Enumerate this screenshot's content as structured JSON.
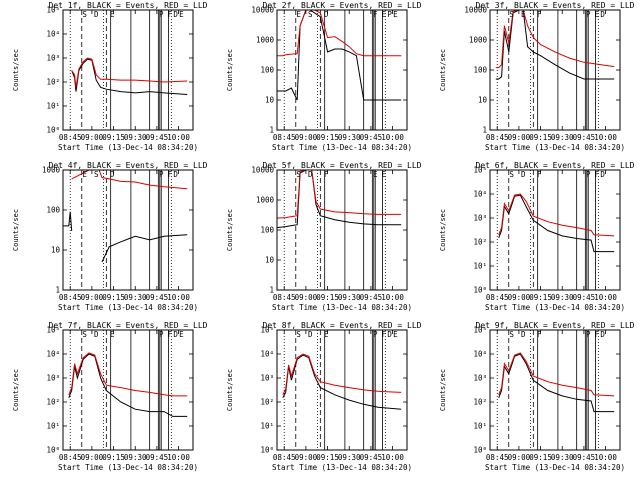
{
  "figure": {
    "xlabel": "Start Time (13-Dec-14 08:34:20)",
    "ylabel": "Counts/sec",
    "colors": {
      "events": "#000000",
      "lld": "#dd0000",
      "background": "#ffffff"
    },
    "time_ticks": [
      "08:45",
      "09:00",
      "09:15",
      "09:30",
      "09:45",
      "10:00"
    ]
  },
  "chart_data": [
    {
      "type": "line",
      "title": "Det 1f, BLACK = Events, RED = LLD",
      "y_scale": "log",
      "ylim": [
        1,
        100000
      ],
      "y_ticks": [
        "10⁰",
        "10¹",
        "10²",
        "10³",
        "10⁴",
        "10⁵"
      ],
      "x": [
        "08:40",
        "08:44",
        "08:46",
        "08:48",
        "08:49",
        "08:51",
        "08:54",
        "08:57",
        "09:00",
        "09:03",
        "09:06",
        "09:10",
        "09:20",
        "09:30",
        "09:40",
        "09:50",
        "10:06"
      ],
      "series": [
        {
          "name": "Events",
          "values": [
            null,
            null,
            300,
            150,
            40,
            300,
            600,
            900,
            800,
            120,
            60,
            50,
            40,
            35,
            40,
            35,
            30
          ]
        },
        {
          "name": "LLD",
          "values": [
            null,
            null,
            300,
            200,
            60,
            350,
            700,
            1000,
            900,
            200,
            130,
            130,
            120,
            120,
            110,
            100,
            110
          ]
        }
      ],
      "panel_markers": [
        "S",
        "D",
        "E",
        "P",
        "F",
        "D",
        "E"
      ]
    },
    {
      "type": "line",
      "title": "Det 2f, BLACK = Events, RED = LLD",
      "y_scale": "log",
      "ylim": [
        1,
        10000
      ],
      "y_ticks": [
        "1",
        "10",
        "100",
        "1000",
        "10000"
      ],
      "x": [
        "08:40",
        "08:44",
        "08:46",
        "08:50",
        "08:54",
        "08:56",
        "09:00",
        "09:03",
        "09:06",
        "09:10",
        "09:15",
        "09:20",
        "09:25",
        "09:30",
        "09:35",
        "09:40",
        "09:50",
        "10:06"
      ],
      "series": [
        {
          "name": "Events",
          "values": [
            20,
            20,
            20,
            25,
            10,
            3000,
            10000,
            10000,
            8000,
            6000,
            400,
            500,
            500,
            400,
            300,
            10,
            10,
            10
          ]
        },
        {
          "name": "LLD",
          "values": [
            300,
            300,
            320,
            340,
            350,
            3000,
            10000,
            10000,
            10000,
            8000,
            1200,
            1300,
            900,
            600,
            350,
            300,
            300,
            300
          ]
        }
      ],
      "panel_markers": [
        "E",
        "S",
        "D",
        "F",
        "E",
        "P",
        "E"
      ]
    },
    {
      "type": "line",
      "title": "Det 3f, BLACK = Events, RED = LLD",
      "y_scale": "log",
      "ylim": [
        1,
        10000
      ],
      "y_ticks": [
        "1",
        "10",
        "100",
        "1000",
        "10000"
      ],
      "x": [
        "08:40",
        "08:44",
        "08:46",
        "08:48",
        "08:50",
        "08:53",
        "08:56",
        "09:00",
        "09:03",
        "09:06",
        "09:10",
        "09:15",
        "09:25",
        "09:35",
        "09:45",
        "10:06"
      ],
      "series": [
        {
          "name": "Events",
          "values": [
            null,
            50,
            50,
            60,
            2000,
            400,
            8000,
            10000,
            10000,
            600,
            400,
            300,
            150,
            80,
            50,
            50
          ]
        },
        {
          "name": "LLD",
          "values": [
            null,
            120,
            120,
            150,
            3000,
            800,
            9000,
            10000,
            10000,
            3000,
            1200,
            700,
            400,
            250,
            180,
            130
          ]
        }
      ],
      "panel_markers": [
        "S",
        "E",
        "F",
        "P",
        "E",
        "D"
      ]
    },
    {
      "type": "line",
      "title": "Det 4f, BLACK = Events, RED = LLD",
      "y_scale": "log",
      "ylim": [
        1,
        1000
      ],
      "y_ticks": [
        "1",
        "10",
        "100",
        "1000"
      ],
      "x": [
        "08:40",
        "08:44",
        "08:45",
        "08:46",
        "08:58",
        "09:05",
        "09:07",
        "09:12",
        "09:20",
        "09:30",
        "09:40",
        "09:50",
        "10:06"
      ],
      "series": [
        {
          "name": "Events",
          "values": [
            40,
            40,
            90,
            30,
            null,
            null,
            5,
            12,
            16,
            22,
            18,
            22,
            24
          ]
        },
        {
          "name": "LLD",
          "values": [
            null,
            null,
            null,
            600,
            1000,
            1000,
            650,
            600,
            520,
            500,
            420,
            380,
            340
          ]
        }
      ],
      "panel_markers": [
        "E",
        "S",
        "D",
        "P",
        "F",
        "D"
      ]
    },
    {
      "type": "line",
      "title": "Det 5f, BLACK = Events, RED = LLD",
      "y_scale": "log",
      "ylim": [
        1,
        10000
      ],
      "y_ticks": [
        "1",
        "10",
        "100",
        "1000",
        "10000"
      ],
      "x": [
        "08:40",
        "08:46",
        "08:50",
        "08:54",
        "08:56",
        "09:00",
        "09:04",
        "09:07",
        "09:10",
        "09:20",
        "09:30",
        "09:40",
        "09:50",
        "10:06"
      ],
      "series": [
        {
          "name": "Events",
          "values": [
            120,
            130,
            140,
            150,
            8000,
            10000,
            10000,
            700,
            300,
            220,
            180,
            160,
            150,
            150
          ]
        },
        {
          "name": "LLD",
          "values": [
            250,
            260,
            280,
            300,
            9000,
            10000,
            10000,
            900,
            500,
            400,
            380,
            350,
            330,
            330
          ]
        }
      ],
      "panel_markers": [
        "S",
        "D",
        "F",
        "E",
        "E"
      ]
    },
    {
      "type": "line",
      "title": "Det 6f, BLACK = Events, RED = LLD",
      "y_scale": "log",
      "ylim": [
        1,
        100000
      ],
      "y_ticks": [
        "10⁰",
        "10¹",
        "10²",
        "10³",
        "10⁴",
        "10⁵"
      ],
      "x": [
        "08:40",
        "08:46",
        "08:48",
        "08:50",
        "08:53",
        "08:57",
        "09:01",
        "09:05",
        "09:10",
        "09:20",
        "09:30",
        "09:40",
        "09:50",
        "09:52",
        "10:06"
      ],
      "series": [
        {
          "name": "Events",
          "values": [
            null,
            150,
            300,
            3000,
            1500,
            8000,
            9000,
            3000,
            800,
            300,
            180,
            140,
            120,
            40,
            40
          ]
        },
        {
          "name": "LLD",
          "values": [
            null,
            200,
            400,
            4000,
            2000,
            9000,
            10000,
            5000,
            1200,
            700,
            500,
            400,
            300,
            200,
            180
          ]
        }
      ],
      "panel_markers": [
        "S",
        "D",
        "F",
        "P",
        "F",
        "D"
      ]
    },
    {
      "type": "line",
      "title": "Det 7f, BLACK = Events, RED = LLD",
      "y_scale": "log",
      "ylim": [
        1,
        100000
      ],
      "y_ticks": [
        "10⁰",
        "10¹",
        "10²",
        "10³",
        "10⁴",
        "10⁵"
      ],
      "x": [
        "08:40",
        "08:44",
        "08:46",
        "08:48",
        "08:50",
        "08:54",
        "08:58",
        "09:02",
        "09:06",
        "09:10",
        "09:20",
        "09:30",
        "09:40",
        "09:50",
        "09:56",
        "10:06"
      ],
      "series": [
        {
          "name": "Events",
          "values": [
            null,
            150,
            300,
            3000,
            1000,
            6000,
            10000,
            8000,
            1000,
            300,
            100,
            50,
            40,
            40,
            25,
            25
          ]
        },
        {
          "name": "LLD",
          "values": [
            null,
            200,
            400,
            4000,
            1500,
            7000,
            11000,
            9000,
            1500,
            500,
            400,
            300,
            250,
            200,
            180,
            180
          ]
        }
      ],
      "panel_markers": [
        "S",
        "D",
        "E",
        "P",
        "F",
        "D",
        "E"
      ]
    },
    {
      "type": "line",
      "title": "Det 8f, BLACK = Events, RED = LLD",
      "y_scale": "log",
      "ylim": [
        1,
        100000
      ],
      "y_ticks": [
        "10⁰",
        "10¹",
        "10²",
        "10³",
        "10⁴",
        "10⁵"
      ],
      "x": [
        "08:40",
        "08:44",
        "08:46",
        "08:48",
        "08:50",
        "08:54",
        "08:58",
        "09:02",
        "09:06",
        "09:10",
        "09:20",
        "09:30",
        "09:40",
        "09:50",
        "10:06"
      ],
      "series": [
        {
          "name": "Events",
          "values": [
            null,
            150,
            250,
            3000,
            800,
            6000,
            9000,
            7000,
            1200,
            400,
            200,
            120,
            80,
            60,
            50
          ]
        },
        {
          "name": "LLD",
          "values": [
            null,
            200,
            350,
            3500,
            1200,
            7000,
            10000,
            8000,
            1500,
            700,
            500,
            400,
            320,
            280,
            250
          ]
        }
      ],
      "panel_markers": [
        "S",
        "D",
        "E",
        "P",
        "F",
        "D",
        "E"
      ]
    },
    {
      "type": "line",
      "title": "Det 9f, BLACK = Events, RED = LLD",
      "y_scale": "log",
      "ylim": [
        1,
        100000
      ],
      "y_ticks": [
        "10⁰",
        "10¹",
        "10²",
        "10³",
        "10⁴",
        "10⁵"
      ],
      "x": [
        "08:40",
        "08:46",
        "08:48",
        "08:50",
        "08:53",
        "08:57",
        "09:01",
        "09:05",
        "09:10",
        "09:20",
        "09:30",
        "09:40",
        "09:50",
        "09:52",
        "10:06"
      ],
      "series": [
        {
          "name": "Events",
          "values": [
            null,
            150,
            300,
            3000,
            1500,
            8000,
            10000,
            4000,
            800,
            300,
            180,
            130,
            110,
            40,
            40
          ]
        },
        {
          "name": "LLD",
          "values": [
            null,
            200,
            400,
            4000,
            2000,
            9000,
            11000,
            5000,
            1200,
            700,
            500,
            400,
            300,
            200,
            180
          ]
        }
      ],
      "panel_markers": [
        "S",
        "D",
        "F",
        "P",
        "F",
        "D"
      ]
    }
  ]
}
